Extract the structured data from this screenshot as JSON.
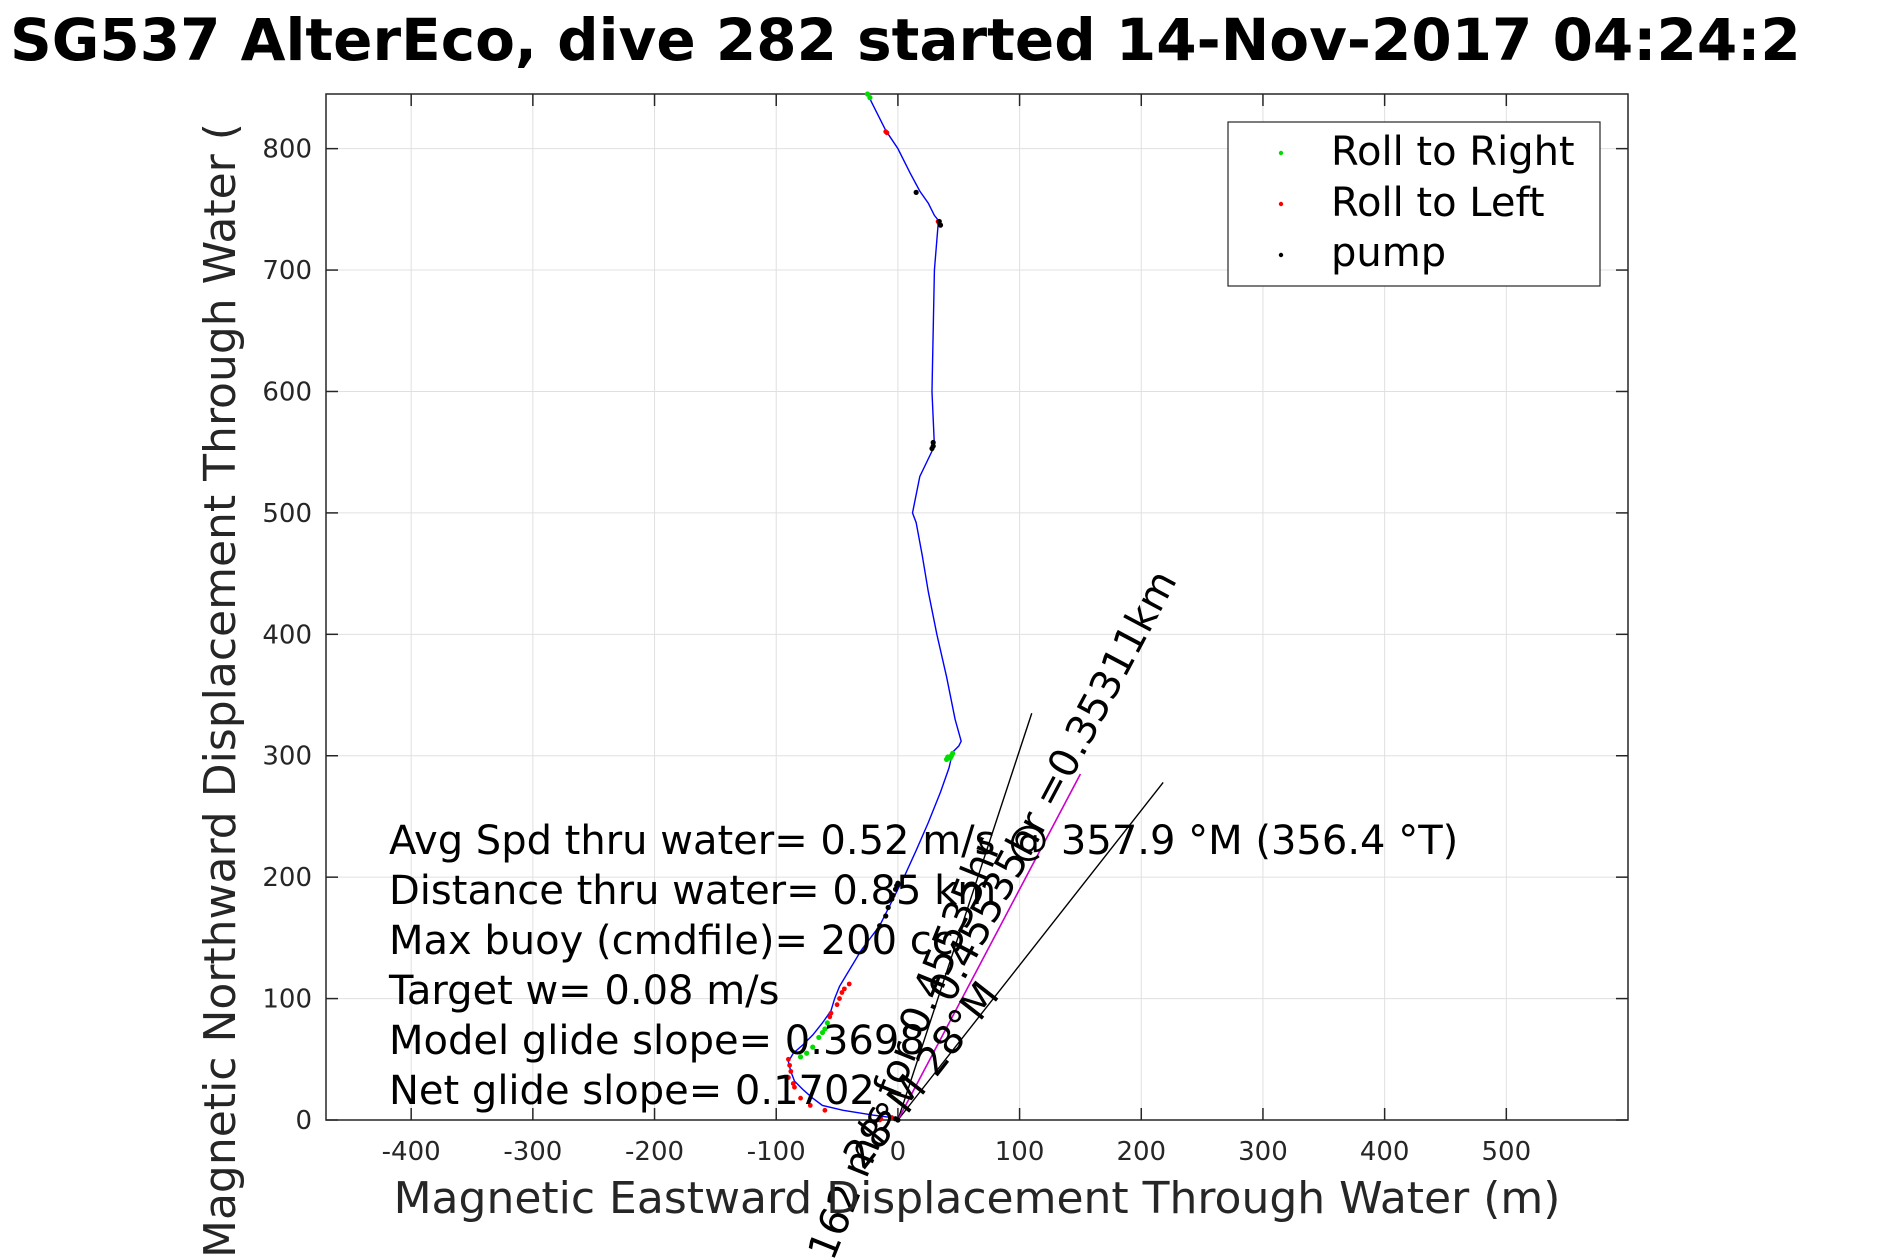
{
  "chart_data": {
    "type": "scatter",
    "title": "SG537 AlterEco, dive 282 started 14-Nov-2017 04:24:2",
    "xlabel": "Magnetic Eastward Displacement Through Water (m)",
    "ylabel": "Magnetic Northward Displacement Through Water (",
    "xlim": [
      -470,
      600
    ],
    "ylim": [
      0,
      845
    ],
    "xticks": [
      -400,
      -300,
      -200,
      -100,
      0,
      100,
      200,
      300,
      400,
      500
    ],
    "yticks": [
      0,
      100,
      200,
      300,
      400,
      500,
      600,
      700,
      800
    ],
    "grid": true,
    "legend_position": "top-right",
    "legend": [
      {
        "label": "Roll to Right",
        "color": "#00dd00"
      },
      {
        "label": "Roll to Left",
        "color": "#ff0000"
      },
      {
        "label": "pump",
        "color": "#000000"
      }
    ],
    "colors": {
      "track": "#0000ff",
      "model": "#cc00cc",
      "lines": "#000000"
    },
    "track": {
      "x": [
        0,
        -5,
        -20,
        -45,
        -62,
        -70,
        -78,
        -85,
        -88,
        -90,
        -86,
        -78,
        -70,
        -62,
        -55,
        -52,
        -48,
        -42,
        -30,
        -15,
        -5,
        5,
        15,
        25,
        35,
        42,
        45,
        50,
        52,
        47,
        40,
        32,
        25,
        20,
        15,
        12,
        18,
        30,
        28,
        29,
        30,
        33,
        34,
        30,
        25,
        18,
        10,
        0,
        -10,
        -15,
        -20,
        -25
      ],
      "y": [
        0,
        2,
        4,
        8,
        12,
        18,
        25,
        32,
        40,
        48,
        55,
        62,
        70,
        80,
        90,
        100,
        110,
        120,
        140,
        160,
        180,
        200,
        222,
        245,
        270,
        290,
        303,
        308,
        312,
        330,
        365,
        400,
        435,
        465,
        492,
        500,
        530,
        555,
        600,
        650,
        700,
        737,
        740,
        745,
        755,
        765,
        780,
        800,
        815,
        825,
        835,
        845
      ]
    },
    "roll_right": {
      "x": [
        43,
        44,
        45,
        40,
        41,
        -80,
        -75,
        -70,
        -65,
        -62,
        -60,
        -58,
        -25,
        -23
      ],
      "y": [
        298,
        300,
        302,
        297,
        299,
        52,
        55,
        60,
        68,
        72,
        75,
        80,
        845,
        842
      ]
    },
    "roll_left": {
      "x": [
        -88,
        -89,
        -90,
        -90,
        -86,
        -85,
        -80,
        -72,
        -60,
        -56,
        -55,
        -50,
        -48,
        -46,
        -44,
        -40,
        -5,
        0,
        -15,
        -14,
        33,
        34,
        35
      ],
      "y": [
        40,
        45,
        50,
        35,
        30,
        27,
        18,
        12,
        8,
        85,
        88,
        95,
        100,
        105,
        108,
        112,
        2,
        0,
        0,
        1,
        740,
        738,
        737
      ],
      "extra_x": [
        -10,
        -9
      ],
      "extra_y": [
        814,
        813
      ]
    },
    "pump": {
      "x": [
        0,
        -2,
        -15,
        -10,
        -8,
        -5,
        -4,
        -2,
        -1,
        0,
        28,
        29,
        29,
        35,
        34,
        15
      ],
      "y": [
        0,
        1,
        160,
        168,
        175,
        182,
        185,
        190,
        193,
        195,
        553,
        555,
        558,
        737,
        740,
        764
      ]
    },
    "model_line": {
      "x": [
        0,
        150
      ],
      "y": [
        0,
        285
      ]
    },
    "glide_lines": [
      {
        "x": [
          0,
          110
        ],
        "y": [
          0,
          335
        ]
      },
      {
        "x": [
          0,
          218
        ],
        "y": [
          0,
          278
        ]
      }
    ],
    "rotated_labels": [
      {
        "text": "0.45535hr =0.35311km",
        "x": 137,
        "y": 270,
        "angle": -62
      },
      {
        "text": "0.162 m/s for 0.45535hr",
        "x": 10,
        "y": 40,
        "angle": -68
      },
      {
        "text": "28°M 28°M",
        "x": 28,
        "y": 30,
        "angle": -52
      }
    ],
    "annotations": [
      "Avg Spd thru water=  0.52 m/s @ 357.9 °M (356.4 °T)",
      "Distance thru water=  0.85 km",
      "Max buoy (cmdfile)= 200 cc",
      "Target w= 0.08 m/s",
      "Model glide slope= 0.3698",
      "Net glide slope= 0.1702"
    ]
  }
}
